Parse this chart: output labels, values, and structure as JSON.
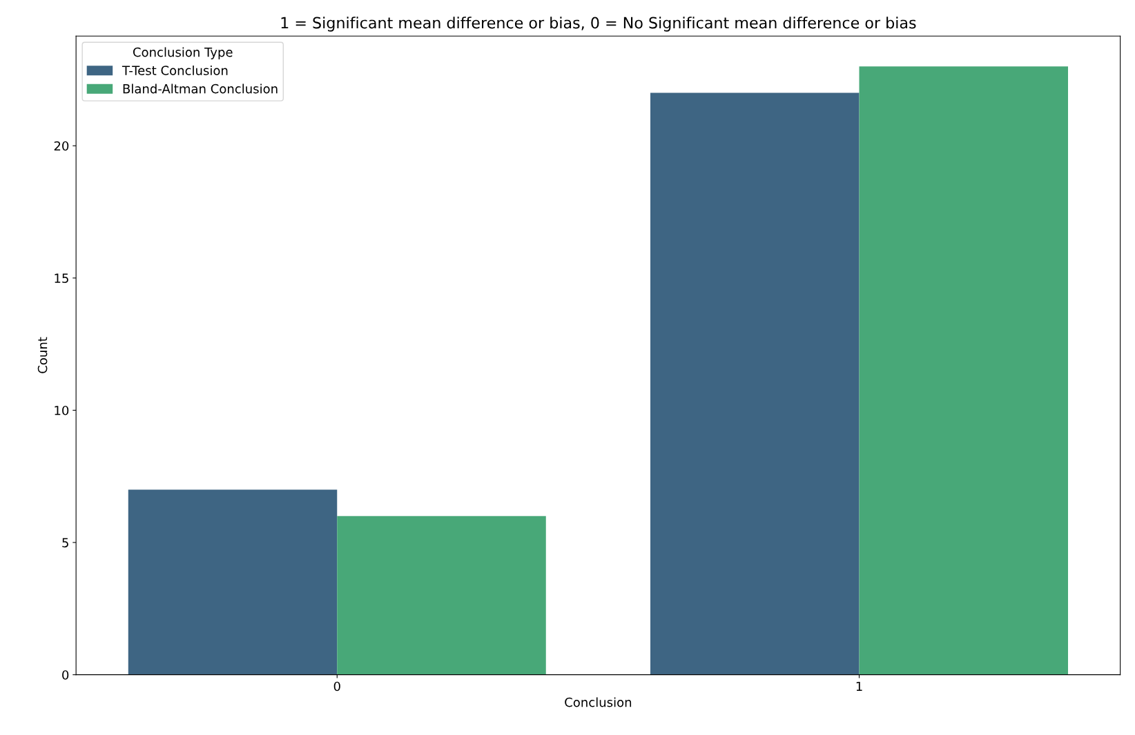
{
  "chart_data": {
    "type": "bar",
    "title": "1 = Significant mean difference or bias, 0 = No Significant mean difference or bias",
    "xlabel": "Conclusion",
    "ylabel": "Count",
    "legend_title": "Conclusion Type",
    "categories": [
      "0",
      "1"
    ],
    "series": [
      {
        "name": "T-Test Conclusion",
        "color": "#3e6583",
        "values": [
          7,
          22
        ]
      },
      {
        "name": "Bland-Altman Conclusion",
        "color": "#48a878",
        "values": [
          6,
          23
        ]
      }
    ],
    "ylim": [
      0,
      24.15
    ],
    "yticks": [
      0,
      5,
      10,
      15,
      20
    ],
    "grid": false,
    "legend": "top left"
  }
}
